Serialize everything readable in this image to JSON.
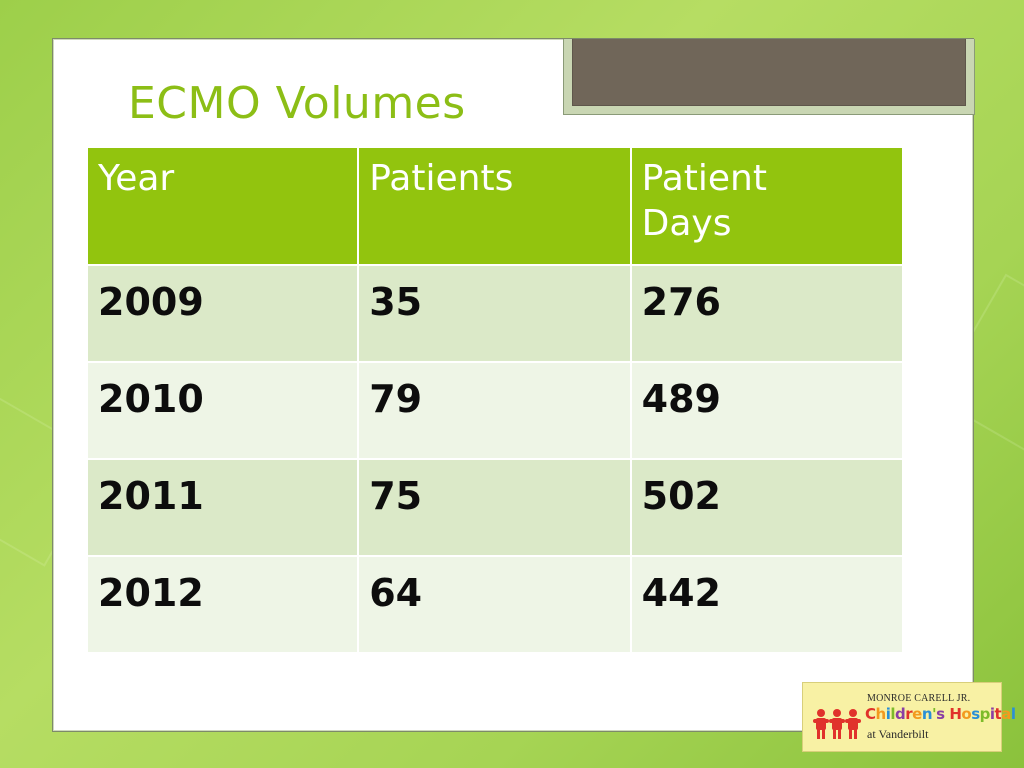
{
  "slide": {
    "title": "ECMO Volumes"
  },
  "table": {
    "headers": [
      "Year",
      "Patients",
      "Patient\nDays"
    ],
    "rows": [
      [
        "2009",
        "35",
        "276"
      ],
      [
        "2010",
        "79",
        "489"
      ],
      [
        "2011",
        "75",
        "502"
      ],
      [
        "2012",
        "64",
        "442"
      ]
    ]
  },
  "logo": {
    "line1": "MONROE CARELL JR.",
    "line2": "Children's Hospital",
    "line3": "at Vanderbilt",
    "icon": "children-figures-icon"
  },
  "colors": {
    "accent": "#92c40e",
    "title": "#8cbe16",
    "row_odd": "#dbe9c8",
    "row_even": "#eef5e6"
  }
}
